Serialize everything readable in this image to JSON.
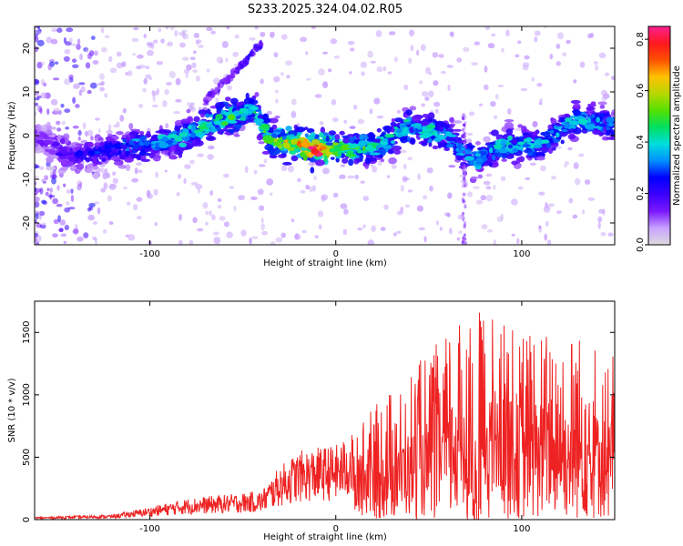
{
  "title": "S233.2025.324.04.02.R05",
  "colors": {
    "snr_line": "#ee2222",
    "colormap": [
      "#dcdcdc",
      "#c9a2ff",
      "#7a18ff",
      "#3c00ff",
      "#0000ff",
      "#0090ff",
      "#00dddd",
      "#00e060",
      "#55e000",
      "#b8d800",
      "#ffc000",
      "#ff5000",
      "#ff1820",
      "#ff2090"
    ]
  },
  "chart_data": [
    {
      "type": "heatmap",
      "title": "S233.2025.324.04.02.R05",
      "xlabel": "Height of straight line (km)",
      "ylabel": "Frequency (Hz)",
      "xlim": [
        -162,
        150
      ],
      "ylim": [
        -25,
        25
      ],
      "xticks": [
        -100,
        0,
        100
      ],
      "yticks": [
        -20,
        -10,
        0,
        10,
        20
      ],
      "colorbar": {
        "label": "Normalized spectral amplitude",
        "range": [
          0,
          0.85
        ],
        "ticks": [
          "0.0",
          "0.2",
          "0.4",
          "0.6",
          "0.8"
        ],
        "tick_values": [
          0,
          0.2,
          0.4,
          0.6,
          0.8
        ]
      },
      "ridge": [
        {
          "x": -162,
          "f": 0,
          "amp": 0.12
        },
        {
          "x": -140,
          "f": -5,
          "amp": 0.22
        },
        {
          "x": -120,
          "f": -3,
          "amp": 0.3
        },
        {
          "x": -100,
          "f": -2,
          "amp": 0.35
        },
        {
          "x": -80,
          "f": 0,
          "amp": 0.4
        },
        {
          "x": -60,
          "f": 4,
          "amp": 0.5
        },
        {
          "x": -45,
          "f": 6,
          "amp": 0.45
        },
        {
          "x": -35,
          "f": -1,
          "amp": 0.5
        },
        {
          "x": -20,
          "f": -2,
          "amp": 0.7
        },
        {
          "x": -12,
          "f": -3,
          "amp": 0.82
        },
        {
          "x": 0,
          "f": -3,
          "amp": 0.55
        },
        {
          "x": 20,
          "f": -3,
          "amp": 0.45
        },
        {
          "x": 40,
          "f": 2,
          "amp": 0.4
        },
        {
          "x": 60,
          "f": 0,
          "amp": 0.4
        },
        {
          "x": 75,
          "f": -6,
          "amp": 0.35
        },
        {
          "x": 90,
          "f": -2,
          "amp": 0.4
        },
        {
          "x": 110,
          "f": -2,
          "amp": 0.38
        },
        {
          "x": 130,
          "f": 4,
          "amp": 0.4
        },
        {
          "x": 150,
          "f": 2,
          "amp": 0.3
        }
      ],
      "branch": [
        {
          "x": -70,
          "f": 8,
          "amp": 0.15
        },
        {
          "x": -55,
          "f": 14,
          "amp": 0.15
        },
        {
          "x": -40,
          "f": 21,
          "amp": 0.25
        }
      ]
    },
    {
      "type": "line",
      "series_name": "SNR",
      "xlabel": "Height of straight line (km)",
      "ylabel": "SNR (10 * v/v)",
      "xlim": [
        -162,
        150
      ],
      "ylim": [
        0,
        1750
      ],
      "xticks": [
        -100,
        0,
        100
      ],
      "yticks": [
        0,
        500,
        1000,
        1500
      ],
      "envelope": [
        {
          "x": -162,
          "max": 20
        },
        {
          "x": -120,
          "max": 40
        },
        {
          "x": -100,
          "max": 100
        },
        {
          "x": -80,
          "max": 170
        },
        {
          "x": -60,
          "max": 200
        },
        {
          "x": -40,
          "max": 230
        },
        {
          "x": -30,
          "max": 430
        },
        {
          "x": -20,
          "max": 550
        },
        {
          "x": -10,
          "max": 580
        },
        {
          "x": 0,
          "max": 600
        },
        {
          "x": 10,
          "max": 700
        },
        {
          "x": 20,
          "max": 900
        },
        {
          "x": 30,
          "max": 1050
        },
        {
          "x": 50,
          "max": 1350
        },
        {
          "x": 75,
          "max": 1700
        },
        {
          "x": 100,
          "max": 1550
        },
        {
          "x": 130,
          "max": 1500
        },
        {
          "x": 150,
          "max": 1350
        }
      ]
    }
  ]
}
